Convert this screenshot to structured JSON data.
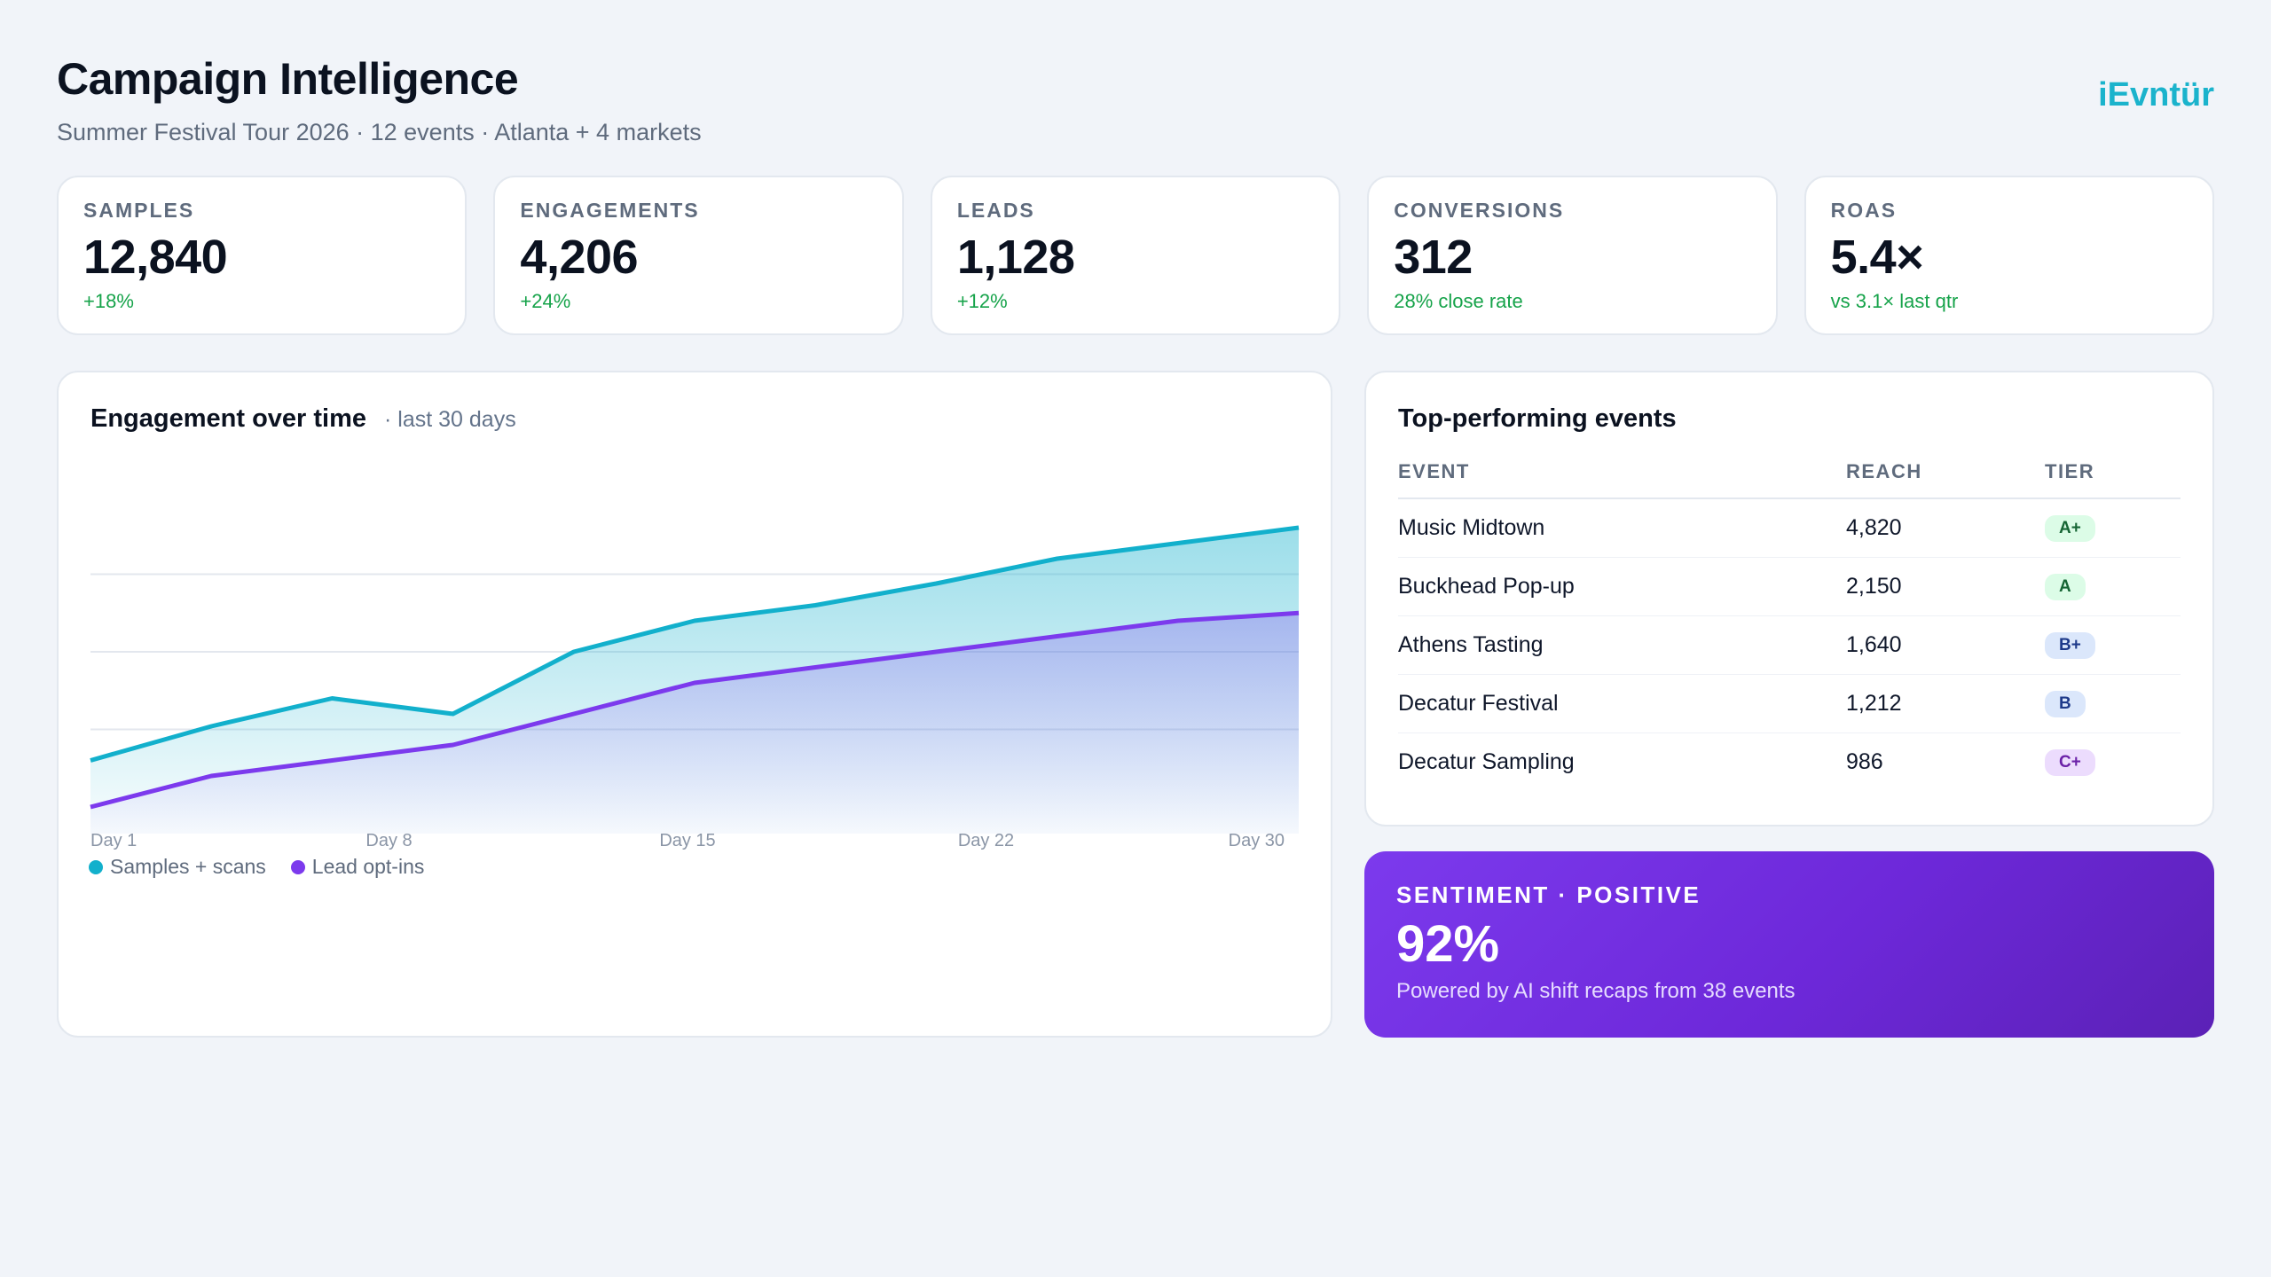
{
  "header": {
    "title": "Campaign Intelligence",
    "subtitle": "Summer Festival Tour 2026 · 12 events · Atlanta + 4 markets",
    "brand": "iEvntür"
  },
  "kpis": [
    {
      "label": "SAMPLES",
      "value": "12,840",
      "delta": "+18%"
    },
    {
      "label": "ENGAGEMENTS",
      "value": "4,206",
      "delta": "+24%"
    },
    {
      "label": "LEADS",
      "value": "1,128",
      "delta": "+12%"
    },
    {
      "label": "CONVERSIONS",
      "value": "312",
      "delta": "28% close rate"
    },
    {
      "label": "ROAS",
      "value": "5.4×",
      "delta": "vs 3.1× last qtr"
    }
  ],
  "engagement_chart": {
    "title": "Engagement over time",
    "note": "· last 30 days"
  },
  "chart_data": {
    "type": "area",
    "x": [
      0,
      1,
      2,
      3,
      4,
      5,
      6,
      7,
      8,
      9,
      10
    ],
    "tick_labels": [
      "Day 1",
      "Day 8",
      "Day 15",
      "Day 22",
      "Day 30"
    ],
    "ylim": [
      0,
      100
    ],
    "grid": true,
    "legend": "bottom-left",
    "series": [
      {
        "name": "Samples + scans",
        "color": "#12b0cc",
        "values": [
          15,
          26,
          35,
          30,
          50,
          60,
          65,
          72,
          80,
          85,
          90
        ]
      },
      {
        "name": "Lead opt-ins",
        "color": "#7c3aed",
        "values": [
          0,
          10,
          15,
          20,
          30,
          40,
          45,
          50,
          55,
          60,
          62.5
        ]
      }
    ]
  },
  "top_events": {
    "title": "Top-performing events",
    "columns": [
      "EVENT",
      "REACH",
      "TIER"
    ],
    "rows": [
      {
        "event": "Music Midtown",
        "reach": "4,820",
        "tier": "A+",
        "tier_bg": "#dcfce7",
        "tier_fg": "#166534"
      },
      {
        "event": "Buckhead Pop-up",
        "reach": "2,150",
        "tier": "A",
        "tier_bg": "#dcfce7",
        "tier_fg": "#166534"
      },
      {
        "event": "Athens Tasting",
        "reach": "1,640",
        "tier": "B+",
        "tier_bg": "#dbe7fb",
        "tier_fg": "#1e3a8a"
      },
      {
        "event": "Decatur Festival",
        "reach": "1,212",
        "tier": "B",
        "tier_bg": "#dbe7fb",
        "tier_fg": "#1e3a8a"
      },
      {
        "event": "Decatur Sampling",
        "reach": "986",
        "tier": "C+",
        "tier_bg": "#ecdcfd",
        "tier_fg": "#6b21a8"
      }
    ]
  },
  "sentiment": {
    "label": "SENTIMENT · POSITIVE",
    "value": "92%",
    "sub": "Powered by AI shift recaps from 38 events"
  }
}
